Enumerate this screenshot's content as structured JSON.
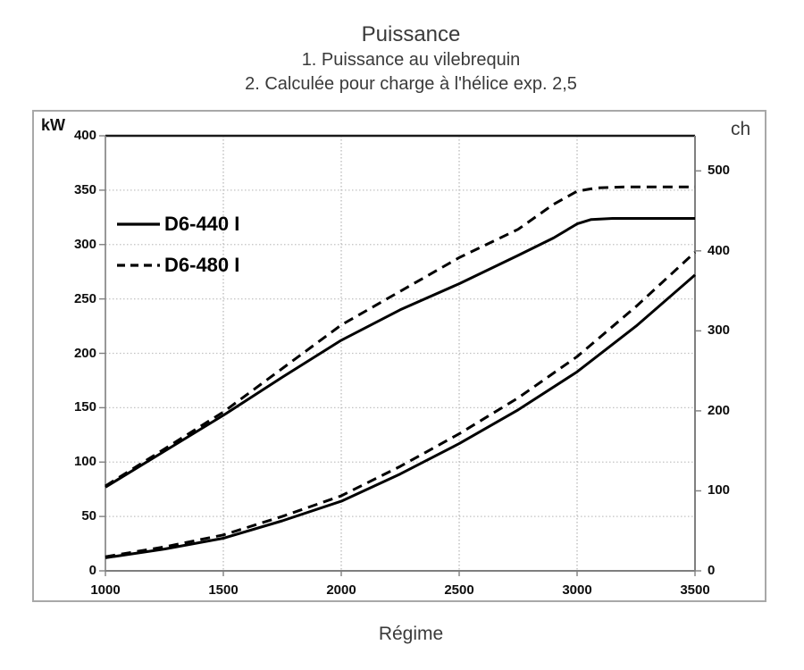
{
  "title": "Puissance",
  "subtitle_line1": "1. Puissance au vilebrequin",
  "subtitle_line2": "2. Calculée pour charge à l'hélice exp. 2,5",
  "chart_data": {
    "type": "line",
    "title": "Puissance",
    "subtitles": [
      "1. Puissance au vilebrequin",
      "2. Calculée pour charge à l'hélice exp. 2,5"
    ],
    "xlabel": "Régime",
    "y_left_label": "kW",
    "y_right_label": "ch",
    "x_axis": {
      "min": 1000,
      "max": 3500,
      "ticks": [
        1000,
        1500,
        2000,
        2500,
        3000,
        3500
      ]
    },
    "y_left_axis": {
      "min": 0,
      "max": 400,
      "ticks": [
        0,
        50,
        100,
        150,
        200,
        250,
        300,
        350,
        400
      ]
    },
    "y_right_axis": {
      "min": 0,
      "ticks": [
        0,
        100,
        200,
        300,
        400,
        500
      ],
      "kw_per_ch": 0.735499
    },
    "grid": true,
    "legend_position": "upper-left",
    "legend": [
      {
        "label": "D6-440 I",
        "style": "solid"
      },
      {
        "label": "D6-480 I",
        "style": "dashed"
      }
    ],
    "series": [
      {
        "id": "d6-440-crankshaft",
        "name": "D6-440 I",
        "style": "solid",
        "role": "puissance au vilebrequin",
        "unit": "kW",
        "points": [
          [
            1000,
            77
          ],
          [
            1250,
            110
          ],
          [
            1500,
            143
          ],
          [
            1750,
            178
          ],
          [
            2000,
            212
          ],
          [
            2250,
            240
          ],
          [
            2500,
            264
          ],
          [
            2750,
            290
          ],
          [
            2900,
            306
          ],
          [
            3000,
            319
          ],
          [
            3060,
            323
          ],
          [
            3150,
            324
          ],
          [
            3500,
            324
          ]
        ]
      },
      {
        "id": "d6-480-crankshaft",
        "name": "D6-480 I",
        "style": "dashed",
        "role": "puissance au vilebrequin",
        "unit": "kW",
        "points": [
          [
            1000,
            78
          ],
          [
            1250,
            112
          ],
          [
            1500,
            146
          ],
          [
            1750,
            186
          ],
          [
            2000,
            226
          ],
          [
            2250,
            257
          ],
          [
            2500,
            288
          ],
          [
            2750,
            314
          ],
          [
            2900,
            337
          ],
          [
            3000,
            349
          ],
          [
            3080,
            352
          ],
          [
            3200,
            353
          ],
          [
            3500,
            353
          ]
        ]
      },
      {
        "id": "d6-440-propeller",
        "name": "D6-440 I",
        "style": "solid",
        "role": "charge à l'hélice exp. 2,5",
        "unit": "kW",
        "points": [
          [
            1000,
            12
          ],
          [
            1250,
            20
          ],
          [
            1500,
            30
          ],
          [
            1750,
            46
          ],
          [
            2000,
            64
          ],
          [
            2250,
            89
          ],
          [
            2500,
            117
          ],
          [
            2750,
            148
          ],
          [
            3000,
            183
          ],
          [
            3250,
            225
          ],
          [
            3500,
            272
          ]
        ]
      },
      {
        "id": "d6-480-propeller",
        "name": "D6-480 I",
        "style": "dashed",
        "role": "charge à l'hélice exp. 2,5",
        "unit": "kW",
        "points": [
          [
            1000,
            13
          ],
          [
            1250,
            22
          ],
          [
            1500,
            33
          ],
          [
            1750,
            50
          ],
          [
            2000,
            69
          ],
          [
            2250,
            96
          ],
          [
            2500,
            126
          ],
          [
            2750,
            159
          ],
          [
            3000,
            197
          ],
          [
            3250,
            243
          ],
          [
            3500,
            293
          ]
        ]
      }
    ],
    "colors": {
      "curve": "#000000",
      "grid_h": "#c2c2c2",
      "grid_v": "#b3b3b3",
      "axis": "#7f7f7f",
      "top_border": "#1a1a1a",
      "frame": "#a8a8a8",
      "title_text": "#3a3a3a",
      "tick_text": "#0d0d0d"
    }
  }
}
